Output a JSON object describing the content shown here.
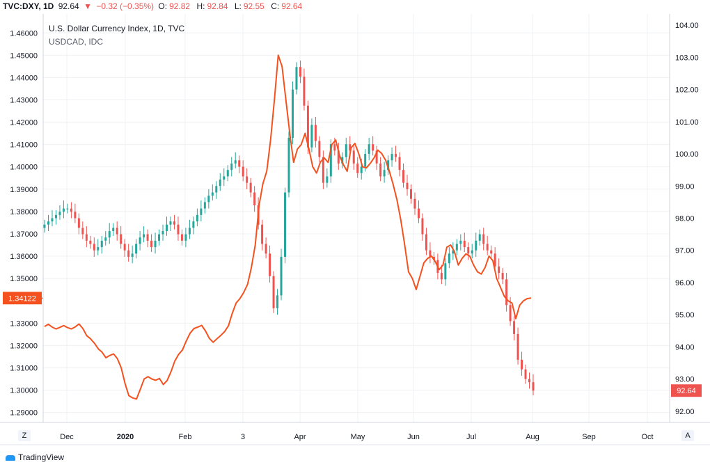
{
  "header": {
    "symbol": "TVC:DXY, 1D",
    "last": "92.64",
    "arrow": "▼",
    "change": "−0.32 (−0.35%)",
    "o_label": "O:",
    "o": "92.82",
    "h_label": "H:",
    "h": "92.84",
    "l_label": "L:",
    "l": "92.55",
    "c_label": "C:",
    "c": "92.64"
  },
  "legend": {
    "line1": "U.S. Dollar Currency Index, 1D, TVC",
    "line2": "USDCAD, IDC"
  },
  "buttons": {
    "z": "Z",
    "a": "A"
  },
  "brand": "TradingView",
  "colors": {
    "up": "#26a69a",
    "down": "#ef5350",
    "overlay": "#f4511e",
    "grid": "#eef0f3"
  },
  "chart_data": {
    "type": "line",
    "x_ticks": [
      "Dec",
      "2020",
      "Feb",
      "3",
      "Apr",
      "May",
      "Jun",
      "Jul",
      "Aug",
      "Sep",
      "Oct"
    ],
    "left_axis": {
      "ticks": [
        "1.46000",
        "1.45000",
        "1.44000",
        "1.43000",
        "1.42000",
        "1.41000",
        "1.40000",
        "1.39000",
        "1.38000",
        "1.37000",
        "1.36000",
        "1.35000",
        "1.33000",
        "1.32000",
        "1.31000",
        "1.30000",
        "1.29000"
      ],
      "range": [
        1.2855,
        1.4685
      ],
      "last_label": "1.34122",
      "last_value": 1.34122
    },
    "right_axis": {
      "ticks": [
        "104.00",
        "103.00",
        "102.00",
        "101.00",
        "100.00",
        "99.00",
        "98.00",
        "97.00",
        "96.00",
        "95.00",
        "94.00",
        "93.00",
        "92.00"
      ],
      "range": [
        91.65,
        104.35
      ],
      "last_label": "92.64",
      "last_value": 92.64
    },
    "series": [
      {
        "name": "U.S. Dollar Currency Index",
        "kind": "candles",
        "axis": "right",
        "closes": [
          97.8,
          97.9,
          98.0,
          98.1,
          98.2,
          98.3,
          98.3,
          98.2,
          98.0,
          97.7,
          97.5,
          97.3,
          97.2,
          97.0,
          97.1,
          97.3,
          97.4,
          97.6,
          97.7,
          97.5,
          97.2,
          97.0,
          96.8,
          96.9,
          97.2,
          97.4,
          97.5,
          97.3,
          97.1,
          97.3,
          97.5,
          97.6,
          97.8,
          97.9,
          97.8,
          97.5,
          97.3,
          97.5,
          97.7,
          97.9,
          98.1,
          98.3,
          98.5,
          98.7,
          98.8,
          99.0,
          99.2,
          99.3,
          99.5,
          99.7,
          99.8,
          99.6,
          99.3,
          99.1,
          98.8,
          98.4,
          97.8,
          97.2,
          96.9,
          96.2,
          95.2,
          95.6,
          96.8,
          98.8,
          100.5,
          102.0,
          102.7,
          102.4,
          101.5,
          100.2,
          100.9,
          100.4,
          99.9,
          99.1,
          99.3,
          100.3,
          100.1,
          99.7,
          99.9,
          100.3,
          100.1,
          99.7,
          99.4,
          99.6,
          100.0,
          100.3,
          100.1,
          99.7,
          99.3,
          99.5,
          99.8,
          100.0,
          99.9,
          99.5,
          99.1,
          98.9,
          98.6,
          98.3,
          98.0,
          97.5,
          97.0,
          96.8,
          96.7,
          96.3,
          96.1,
          96.6,
          96.9,
          97.0,
          97.2,
          97.3,
          97.1,
          96.9,
          97.0,
          97.3,
          97.5,
          97.2,
          97.0,
          96.9,
          96.5,
          96.3,
          96.1,
          95.3,
          94.8,
          94.4,
          93.6,
          93.3,
          93.0,
          92.9,
          92.64
        ]
      },
      {
        "name": "USDCAD",
        "kind": "line",
        "axis": "left",
        "values": [
          1.3285,
          1.3295,
          1.3282,
          1.3274,
          1.3281,
          1.3289,
          1.328,
          1.3274,
          1.3283,
          1.3296,
          1.3276,
          1.3244,
          1.323,
          1.321,
          1.3185,
          1.317,
          1.3145,
          1.3155,
          1.3162,
          1.3141,
          1.31,
          1.303,
          1.2975,
          1.2965,
          1.296,
          1.3004,
          1.305,
          1.306,
          1.305,
          1.3044,
          1.3052,
          1.3025,
          1.3043,
          1.3082,
          1.313,
          1.316,
          1.318,
          1.322,
          1.3255,
          1.3276,
          1.3282,
          1.329,
          1.3265,
          1.3232,
          1.3214,
          1.323,
          1.3245,
          1.3262,
          1.3288,
          1.3344,
          1.339,
          1.341,
          1.3438,
          1.3474,
          1.355,
          1.365,
          1.3828,
          1.3925,
          1.398,
          1.412,
          1.43,
          1.45,
          1.445,
          1.43,
          1.415,
          1.402,
          1.408,
          1.41,
          1.415,
          1.408,
          1.4,
          1.3972,
          1.4022,
          1.404,
          1.402,
          1.41,
          1.412,
          1.405,
          1.401,
          1.398,
          1.4085,
          1.4105,
          1.406,
          1.4,
          1.3995,
          1.4015,
          1.404,
          1.4075,
          1.406,
          1.403,
          1.398,
          1.392,
          1.385,
          1.376,
          1.365,
          1.353,
          1.35,
          1.345,
          1.351,
          1.357,
          1.359,
          1.36,
          1.3575,
          1.354,
          1.356,
          1.364,
          1.365,
          1.362,
          1.356,
          1.359,
          1.361,
          1.36,
          1.356,
          1.353,
          1.352,
          1.355,
          1.36,
          1.358,
          1.35,
          1.346,
          1.342,
          1.34,
          1.339,
          1.332,
          1.338,
          1.34,
          1.341,
          1.34122
        ]
      }
    ]
  }
}
